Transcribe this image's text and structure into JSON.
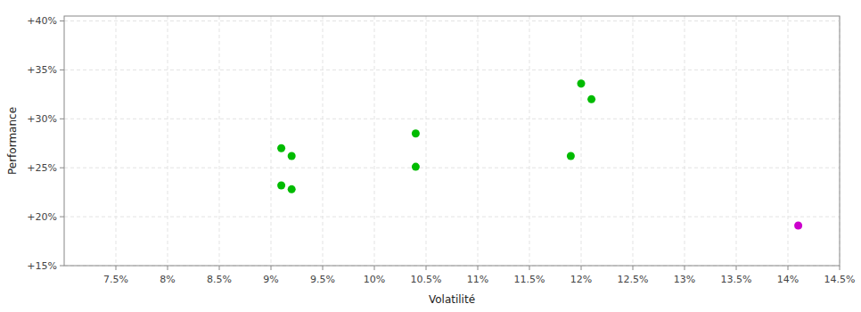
{
  "chart_data": {
    "type": "scatter",
    "xlabel": "Volatilité",
    "ylabel": "Performance",
    "xlim": [
      0.07,
      0.145
    ],
    "ylim": [
      0.15,
      0.405
    ],
    "xticks": [
      {
        "value": 0.075,
        "label": "7.5%"
      },
      {
        "value": 0.08,
        "label": "8%"
      },
      {
        "value": 0.085,
        "label": "8.5%"
      },
      {
        "value": 0.09,
        "label": "9%"
      },
      {
        "value": 0.095,
        "label": "9.5%"
      },
      {
        "value": 0.1,
        "label": "10%"
      },
      {
        "value": 0.105,
        "label": "10.5%"
      },
      {
        "value": 0.11,
        "label": "11%"
      },
      {
        "value": 0.115,
        "label": "11.5%"
      },
      {
        "value": 0.12,
        "label": "12%"
      },
      {
        "value": 0.125,
        "label": "12.5%"
      },
      {
        "value": 0.13,
        "label": "13%"
      },
      {
        "value": 0.135,
        "label": "13.5%"
      },
      {
        "value": 0.14,
        "label": "14%"
      },
      {
        "value": 0.145,
        "label": "14.5%"
      }
    ],
    "yticks": [
      {
        "value": 0.15,
        "label": "+15%"
      },
      {
        "value": 0.2,
        "label": "+20%"
      },
      {
        "value": 0.25,
        "label": "+25%"
      },
      {
        "value": 0.3,
        "label": "+30%"
      },
      {
        "value": 0.35,
        "label": "+35%"
      },
      {
        "value": 0.4,
        "label": "+40%"
      }
    ],
    "grid": true,
    "series": [
      {
        "color": "#00bb00",
        "x": [
          0.091,
          0.092,
          0.091,
          0.092,
          0.104,
          0.104,
          0.12,
          0.121,
          0.119
        ],
        "values": [
          0.27,
          0.262,
          0.232,
          0.228,
          0.285,
          0.251,
          0.336,
          0.32,
          0.262
        ]
      },
      {
        "color": "#cc00cc",
        "x": [
          0.141
        ],
        "values": [
          0.191
        ]
      }
    ]
  }
}
